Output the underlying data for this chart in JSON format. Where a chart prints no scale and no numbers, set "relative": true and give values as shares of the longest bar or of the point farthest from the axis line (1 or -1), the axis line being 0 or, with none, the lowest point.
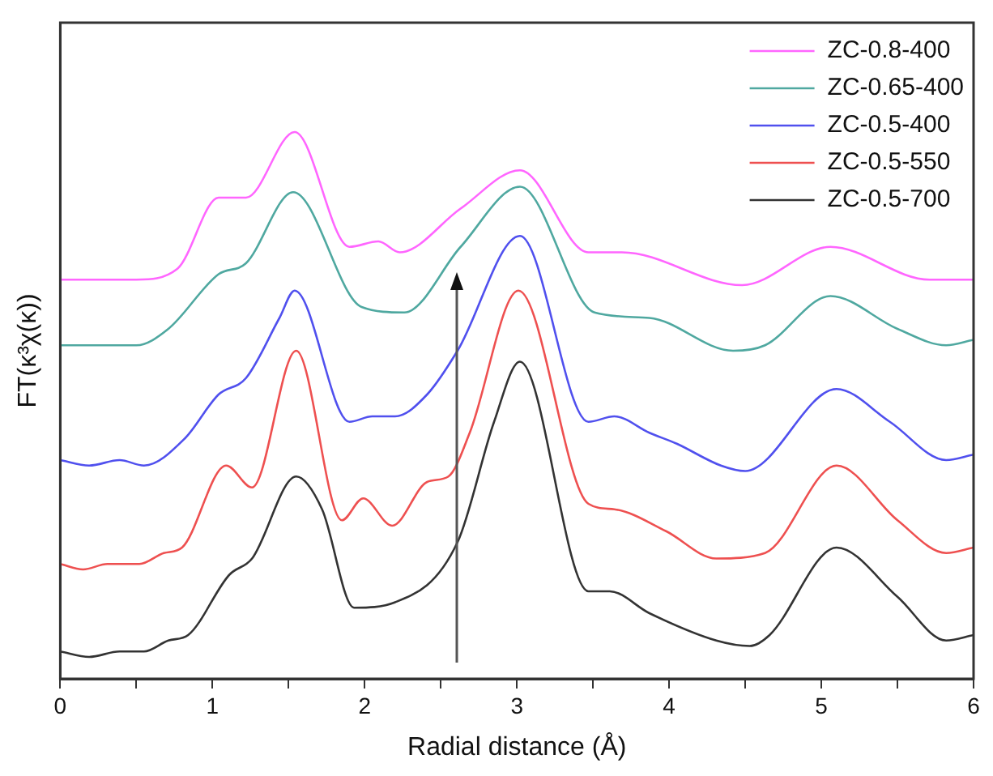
{
  "chart_data": {
    "type": "line",
    "xlabel": "Radial distance (Å)",
    "ylabel": "FT(κ³χ(κ))",
    "relative": true,
    "xlim": [
      0,
      6
    ],
    "xticks": [
      0,
      {
        "value": 0.5,
        "label": null
      },
      1,
      {
        "value": 1.5,
        "label": null
      },
      2,
      {
        "value": 2.5,
        "label": null
      },
      3,
      {
        "value": 3.5,
        "label": null
      },
      4,
      {
        "value": 4.5,
        "label": null
      },
      5,
      {
        "value": 5.5,
        "label": null
      },
      6
    ],
    "legend": "top right",
    "grid": false,
    "marker": "none",
    "line_style": "solid",
    "series": [
      {
        "name": "ZC-0.8-400",
        "color": "#ff66ff",
        "x": [
          0,
          0.5,
          0.77,
          1.04,
          1.22,
          1.54,
          1.9,
          2.09,
          2.23,
          2.63,
          3.02,
          3.47,
          3.69,
          4.48,
          5.06,
          5.71,
          6
        ],
        "values": [
          0.73,
          0.73,
          0.75,
          0.88,
          0.88,
          1.0,
          0.79,
          0.8,
          0.78,
          0.86,
          0.93,
          0.78,
          0.78,
          0.72,
          0.79,
          0.73,
          0.73
        ]
      },
      {
        "name": "ZC-0.65-400",
        "color": "#4fa8a0",
        "x": [
          0,
          0.5,
          0.71,
          1.04,
          1.22,
          1.53,
          1.98,
          2.26,
          2.63,
          3.02,
          3.51,
          3.87,
          4.42,
          4.63,
          5.06,
          5.5,
          5.82,
          6
        ],
        "values": [
          0.61,
          0.61,
          0.64,
          0.74,
          0.76,
          0.89,
          0.68,
          0.67,
          0.79,
          0.9,
          0.67,
          0.66,
          0.6,
          0.61,
          0.7,
          0.64,
          0.61,
          0.62
        ]
      },
      {
        "name": "ZC-0.5-400",
        "color": "#5050ee",
        "x": [
          0,
          0.19,
          0.39,
          0.55,
          0.82,
          1.04,
          1.22,
          1.44,
          1.54,
          1.9,
          2.05,
          2.2,
          2.41,
          2.61,
          3.02,
          3.47,
          3.64,
          3.87,
          4.05,
          4.34,
          4.5,
          5.1,
          5.45,
          5.82,
          6
        ],
        "values": [
          0.4,
          0.39,
          0.4,
          0.39,
          0.44,
          0.52,
          0.55,
          0.66,
          0.71,
          0.47,
          0.48,
          0.48,
          0.52,
          0.6,
          0.81,
          0.47,
          0.48,
          0.45,
          0.43,
          0.39,
          0.38,
          0.53,
          0.47,
          0.4,
          0.41
        ]
      },
      {
        "name": "ZC-0.5-550",
        "color": "#ee5050",
        "x": [
          0,
          0.15,
          0.31,
          0.52,
          0.68,
          0.8,
          1.09,
          1.26,
          1.55,
          1.85,
          1.99,
          2.18,
          2.41,
          2.55,
          2.69,
          3.01,
          3.47,
          3.64,
          3.98,
          4.31,
          4.63,
          5.1,
          5.5,
          5.82,
          6
        ],
        "values": [
          0.21,
          0.2,
          0.21,
          0.21,
          0.23,
          0.24,
          0.39,
          0.35,
          0.6,
          0.29,
          0.33,
          0.28,
          0.36,
          0.37,
          0.45,
          0.71,
          0.32,
          0.31,
          0.27,
          0.22,
          0.23,
          0.39,
          0.29,
          0.23,
          0.24
        ]
      },
      {
        "name": "ZC-0.5-700",
        "color": "#333333",
        "x": [
          0,
          0.19,
          0.39,
          0.55,
          0.71,
          0.84,
          1.11,
          1.26,
          1.55,
          1.72,
          1.93,
          2.2,
          2.61,
          2.85,
          3.02,
          3.47,
          3.61,
          3.87,
          4.31,
          4.53,
          4.66,
          5.1,
          5.5,
          5.82,
          6
        ],
        "values": [
          0.05,
          0.04,
          0.05,
          0.05,
          0.07,
          0.08,
          0.19,
          0.22,
          0.37,
          0.31,
          0.13,
          0.14,
          0.25,
          0.47,
          0.58,
          0.16,
          0.16,
          0.12,
          0.07,
          0.06,
          0.08,
          0.24,
          0.15,
          0.07,
          0.08
        ]
      }
    ]
  }
}
